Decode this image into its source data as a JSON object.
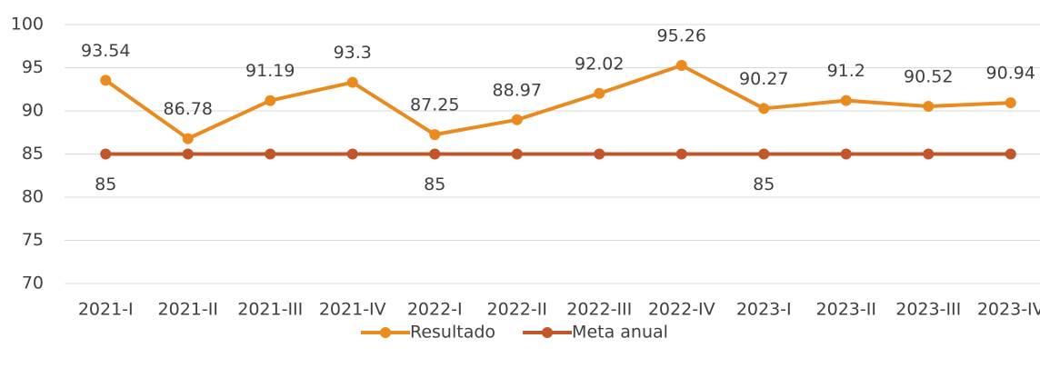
{
  "chart_data": {
    "type": "line",
    "categories": [
      "2021-I",
      "2021-II",
      "2021-III",
      "2021-IV",
      "2022-I",
      "2022-II",
      "2022-III",
      "2022-IV",
      "2023-I",
      "2023-II",
      "2023-III",
      "2023-IV"
    ],
    "series": [
      {
        "name": "Resultado",
        "color": "#e98b1f",
        "values": [
          93.54,
          86.78,
          91.19,
          93.3,
          87.25,
          88.97,
          92.02,
          95.26,
          90.27,
          91.2,
          90.52,
          90.94
        ]
      },
      {
        "name": "Meta anual",
        "color": "#c0562a",
        "values": [
          85,
          85,
          85,
          85,
          85,
          85,
          85,
          85,
          85,
          85,
          85,
          85
        ],
        "value_labels": [
          "85",
          null,
          null,
          null,
          "85",
          null,
          null,
          null,
          "85",
          null,
          null,
          null
        ]
      }
    ],
    "ylim": [
      70,
      100
    ],
    "yticks": [
      70,
      75,
      80,
      85,
      90,
      95,
      100
    ],
    "grid": true,
    "legend": "bottom"
  }
}
